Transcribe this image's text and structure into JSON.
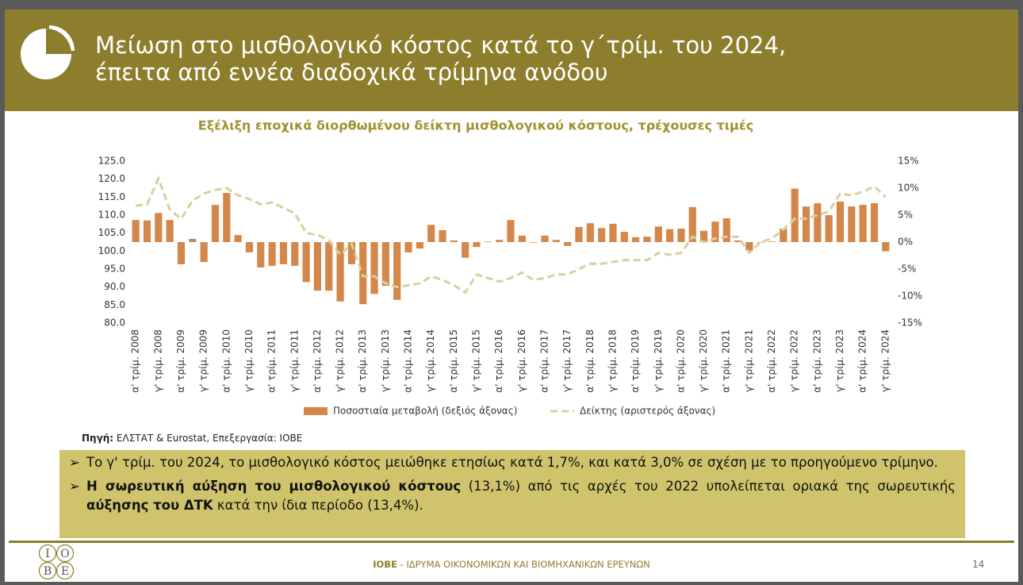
{
  "header": {
    "title": [
      "Μείωση στο μισθολογικό κόστος κατά το γ΄τρίμ. του 2024,",
      "έπειτα από εννέα διαδοχικά τρίμηνα ανόδου"
    ]
  },
  "chart_data": {
    "type": "combo",
    "title": "Εξέλιξη εποχικά διορθωμένου δείκτη μισθολογικού κόστους, τρέχουσες τιμές",
    "categories": [
      "α' τρίμ. 2008",
      null,
      "γ' τρίμ. 2008",
      null,
      "α' τρίμ. 2009",
      null,
      "γ' τρίμ. 2009",
      null,
      "α' τρίμ. 2010",
      null,
      "γ' τρίμ. 2010",
      null,
      "α' τρίμ. 2011",
      null,
      "γ' τρίμ. 2011",
      null,
      "α' τρίμ. 2012",
      null,
      "γ' τρίμ. 2012",
      null,
      "α' τρίμ. 2013",
      null,
      "γ' τρίμ. 2013",
      null,
      "α' τρίμ. 2014",
      null,
      "γ' τρίμ. 2014",
      null,
      "α' τρίμ. 2015",
      null,
      "γ' τρίμ. 2015",
      null,
      "α' τρίμ. 2016",
      null,
      "γ' τρίμ. 2016",
      null,
      "α' τρίμ. 2017",
      null,
      "γ' τρίμ. 2017",
      null,
      "α' τρίμ. 2018",
      null,
      "γ' τρίμ. 2018",
      null,
      "α' τρίμ. 2019",
      null,
      "γ' τρίμ. 2019",
      null,
      "α' τρίμ. 2020",
      null,
      "γ' τρίμ. 2020",
      null,
      "α' τρίμ. 2021",
      null,
      "γ' τρίμ. 2021",
      null,
      "α' τρίμ. 2022",
      null,
      "γ' τρίμ. 2022",
      null,
      "α' τρίμ. 2023",
      null,
      "γ' τρίμ. 2023",
      null,
      "α' τρίμ. 2024",
      null,
      "γ' τρίμ. 2024"
    ],
    "series": [
      {
        "name": "Ποσοστιαία μεταβολή (δεξιός άξονας)",
        "type": "bar",
        "axis": "y2",
        "color": "#d4874a",
        "values": [
          4.1,
          4.0,
          5.4,
          4.1,
          -4.1,
          0.6,
          -3.7,
          6.9,
          9.1,
          1.3,
          -1.9,
          -4.7,
          -4.4,
          -4.1,
          -4.4,
          -7.4,
          -9.0,
          -9.0,
          -11.0,
          -4.1,
          -11.5,
          -9.6,
          -8.1,
          -10.7,
          -1.9,
          -1.2,
          3.2,
          2.2,
          0.3,
          -2.9,
          -0.9,
          0.1,
          0.4,
          4.1,
          1.2,
          -0.1,
          1.2,
          0.4,
          -0.7,
          2.8,
          3.5,
          2.6,
          3.4,
          1.9,
          0.9,
          1.0,
          2.9,
          2.4,
          2.5,
          6.5,
          2.1,
          3.8,
          4.4,
          0.3,
          -1.6,
          -0.1,
          0.1,
          2.5,
          9.9,
          6.6,
          7.2,
          5.0,
          7.5,
          6.6,
          6.9,
          7.2,
          -1.7
        ]
      },
      {
        "name": "Δείκτης (αριστερός άξονας)",
        "type": "line",
        "axis": "y",
        "color": "#d8d09e",
        "dashed": true,
        "values": [
          112.6,
          113.0,
          120.2,
          111.5,
          109.0,
          114.0,
          116.0,
          117.0,
          117.5,
          115.5,
          114.5,
          113.0,
          113.5,
          112.0,
          110.5,
          105.0,
          104.5,
          103.0,
          99.0,
          102.0,
          93.0,
          93.0,
          91.0,
          90.0,
          90.5,
          91.0,
          93.0,
          92.0,
          90.5,
          88.5,
          93.5,
          92.5,
          91.5,
          92.5,
          94.0,
          92.0,
          92.5,
          93.5,
          93.5,
          95.0,
          96.5,
          96.5,
          97.0,
          97.5,
          97.5,
          97.5,
          99.5,
          99.0,
          99.5,
          104.0,
          102.5,
          103.5,
          104.0,
          104.0,
          99.5,
          102.5,
          103.5,
          106.0,
          109.0,
          109.0,
          110.0,
          111.0,
          116.0,
          115.5,
          116.5,
          118.0,
          115.0
        ]
      }
    ],
    "ylim": [
      80,
      125
    ],
    "yticks": [
      {
        "value": 80,
        "label": "80.0"
      },
      {
        "value": 85,
        "label": "85.0"
      },
      {
        "value": 90,
        "label": "90.0"
      },
      {
        "value": 95,
        "label": "95.0"
      },
      {
        "value": 100,
        "label": "100.0"
      },
      {
        "value": 105,
        "label": "105.0"
      },
      {
        "value": 110,
        "label": "110.0"
      },
      {
        "value": 115,
        "label": "115.0"
      },
      {
        "value": 120,
        "label": "120.0"
      },
      {
        "value": 125,
        "label": "125.0"
      }
    ],
    "y2lim": [
      -15,
      15
    ],
    "y2ticks": [
      {
        "value": -15,
        "label": "-15%"
      },
      {
        "value": -10,
        "label": "-10%"
      },
      {
        "value": -5,
        "label": "-5%"
      },
      {
        "value": 0,
        "label": "0%"
      },
      {
        "value": 5,
        "label": "5%"
      },
      {
        "value": 10,
        "label": "10%"
      },
      {
        "value": 15,
        "label": "15%"
      }
    ],
    "grid": false,
    "legend": "bottom"
  },
  "source": {
    "label": "Πηγή:",
    "text": " ΕΛΣΤΑΤ & Eurostat, Επεξεργασία: ΙΟΒΕ"
  },
  "bullets": [
    [
      {
        "text": "Το γ' τρίμ. του 2024, το μισθολογικό κόστος μειώθηκε ετησίως κατά 1,7%, και κατά 3,0% σε σχέση με το προηγούμενο τρίμηνο.",
        "bold": false
      }
    ],
    [
      {
        "text": "Η σωρευτική αύξηση του μισθολογικού κόστους",
        "bold": true
      },
      {
        "text": " (13,1%) από τις αρχές του 2022 υπολείπεται οριακά της σωρευτικής ",
        "bold": false
      },
      {
        "text": "αύξησης του ΔΤΚ",
        "bold": true
      },
      {
        "text": " κατά την ίδια περίοδο (13,4%).",
        "bold": false
      }
    ]
  ],
  "footer": {
    "org_abbr": "ΙΟΒΕ",
    "org_name": " - ΙΔΡΥΜΑ ΟΙΚΟΝΟΜΙΚΩΝ ΚΑΙ ΒΙΟΜΗΧΑΝΙΚΩΝ ΕΡΕΥΝΩΝ",
    "page_number": "14",
    "logo": [
      "I",
      "O",
      "B",
      "E"
    ]
  }
}
